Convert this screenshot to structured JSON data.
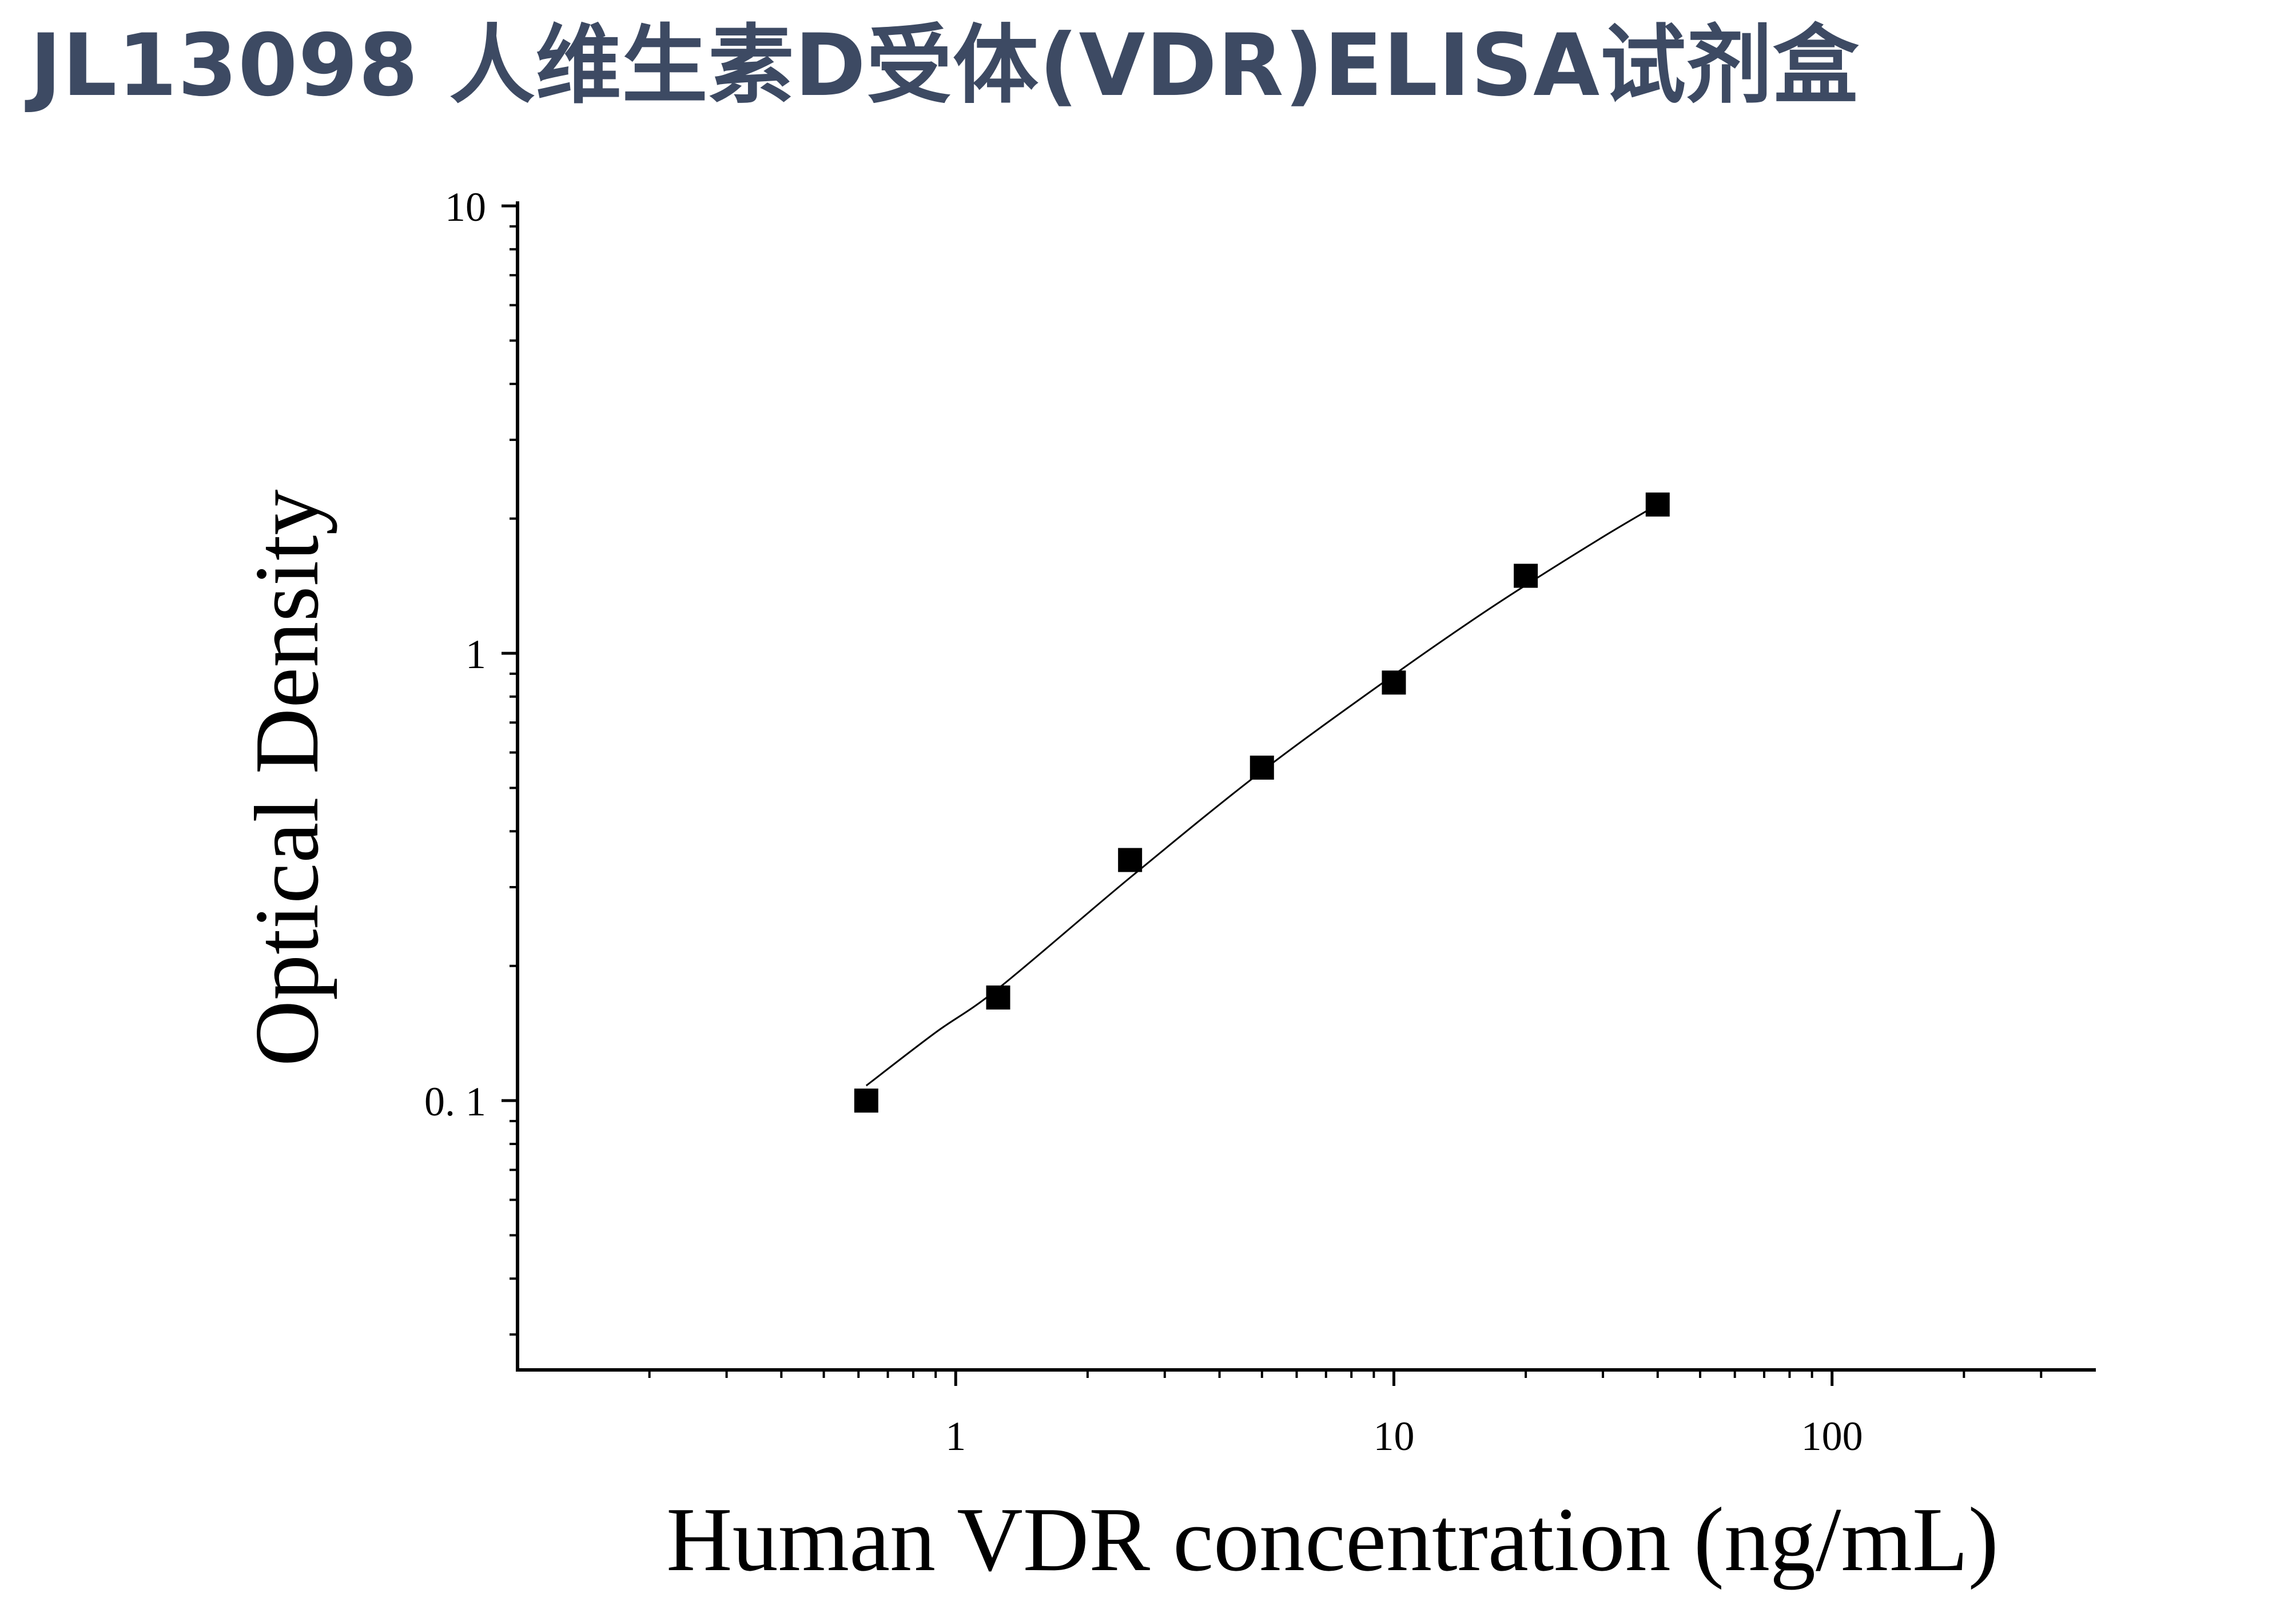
{
  "title": "JL13098 人维生素D受体(VDR)ELISA试剂盒",
  "colors": {
    "title": "#3d4a63",
    "axis": "#000000",
    "marker": "#000000",
    "curve": "#000000",
    "background": "#ffffff"
  },
  "chart_data": {
    "type": "scatter",
    "title": "",
    "xlabel": "Human VDR concentration (ng/mL)",
    "ylabel": "Optical Density",
    "xscale": "log",
    "yscale": "log",
    "xlim": [
      0.1,
      400
    ],
    "ylim": [
      0.025,
      10
    ],
    "x_ticks": [
      1,
      10,
      100
    ],
    "x_tick_labels": [
      "1",
      "10",
      "100"
    ],
    "y_ticks": [
      0.1,
      1,
      10
    ],
    "y_tick_labels": [
      "0. 1",
      "1",
      "10"
    ],
    "grid": false,
    "legend": "none",
    "series": [
      {
        "marker": "square",
        "x": [
          0.625,
          1.25,
          2.5,
          5,
          10,
          20,
          40
        ],
        "y": [
          0.1,
          0.17,
          0.345,
          0.555,
          0.86,
          1.49,
          2.15
        ]
      }
    ],
    "fit_curve": {
      "type": "smooth",
      "x": [
        0.625,
        0.9,
        1.25,
        2.5,
        5,
        10,
        15,
        20,
        30,
        40
      ],
      "y": [
        0.108,
        0.142,
        0.178,
        0.315,
        0.545,
        0.895,
        1.18,
        1.42,
        1.82,
        2.15
      ]
    }
  }
}
